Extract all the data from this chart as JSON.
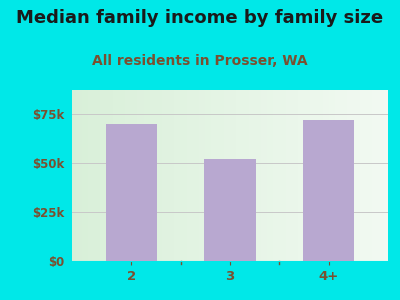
{
  "title": "Median family income by family size",
  "subtitle": "All residents in Prosser, WA",
  "categories": [
    "2",
    "3",
    "4+"
  ],
  "values": [
    70000,
    52000,
    72000
  ],
  "bar_color": "#b8a8d0",
  "bg_color": "#00e8e8",
  "yticks": [
    0,
    25000,
    50000,
    75000
  ],
  "ytick_labels": [
    "$0",
    "$25k",
    "$50k",
    "$75k"
  ],
  "ylim": [
    0,
    87500
  ],
  "title_color": "#1a1a1a",
  "subtitle_color": "#7a5030",
  "title_fontsize": 13,
  "subtitle_fontsize": 10,
  "tick_color": "#7a5030",
  "grid_color": "#c8c8c8",
  "plot_bg_left": "#d8f0d0",
  "plot_bg_right": "#f4f8f0"
}
